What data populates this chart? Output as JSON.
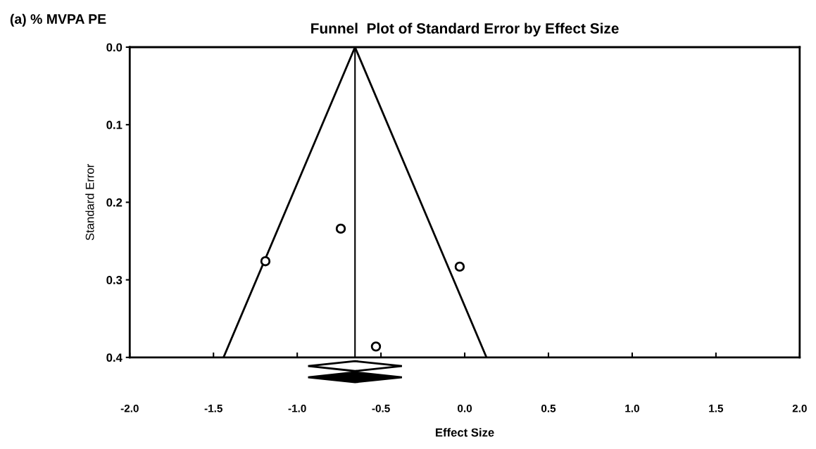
{
  "chart_data": {
    "type": "scatter",
    "title": "Funnel  Plot of Standard Error by Effect Size",
    "xlabel": "Effect Size",
    "ylabel": "Standard Error",
    "annotations": [
      "(a) % MVPA PE"
    ],
    "series": [
      {
        "color": "#000000",
        "marker": "circle",
        "x": [
          -1.19,
          -0.74,
          -0.03,
          -0.53
        ],
        "values": [
          0.276,
          0.234,
          0.283,
          0.386
        ]
      },
      {
        "type": "line",
        "color": "#000000",
        "marker": "none",
        "x": [
          -1.44,
          -0.655,
          0.13
        ],
        "values": [
          0.4,
          0.0,
          0.4
        ]
      }
    ],
    "ref_lines": [
      {
        "axis": "x",
        "value": -0.655,
        "color": "#000000"
      }
    ],
    "xlim": [
      -2.0,
      2.0
    ],
    "xticks": [
      {
        "value": -2.0,
        "label": "-2.0"
      },
      {
        "value": -1.5,
        "label": "-1.5"
      },
      {
        "value": -1.0,
        "label": "-1.0"
      },
      {
        "value": -0.5,
        "label": "-0.5"
      },
      {
        "value": 0.0,
        "label": "0.0"
      },
      {
        "value": 0.5,
        "label": "0.5"
      },
      {
        "value": 1.0,
        "label": "1.0"
      },
      {
        "value": 1.5,
        "label": "1.5"
      },
      {
        "value": 2.0,
        "label": "2.0"
      }
    ],
    "ylim": [
      0.4,
      0.0
    ],
    "yticks": [
      {
        "value": 0.0,
        "label": "0.0"
      },
      {
        "value": 0.1,
        "label": "0.1"
      },
      {
        "value": 0.2,
        "label": "0.2"
      },
      {
        "value": 0.3,
        "label": "0.3"
      },
      {
        "value": 0.4,
        "label": "0.4"
      }
    ],
    "grid": false,
    "legend": false
  }
}
